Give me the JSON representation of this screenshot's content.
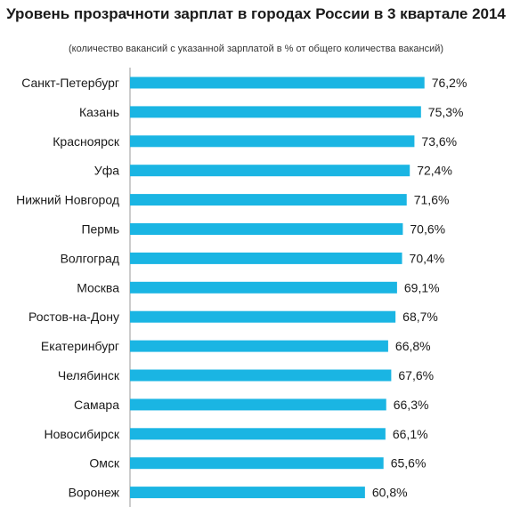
{
  "chart_data": {
    "type": "bar",
    "orientation": "horizontal",
    "title": "Уровень прозрачноти зарплат в городах России в 3 квартале 2014",
    "subtitle": "(количество вакансий с указанной зарплатой в % от общего количества вакансий)",
    "categories": [
      "Санкт-Петербург",
      "Казань",
      "Красноярск",
      "Уфа",
      "Нижний Новгород",
      "Пермь",
      "Волгоград",
      "Москва",
      "Ростов-на-Дону",
      "Екатеринбург",
      "Челябинск",
      "Самара",
      "Новосибирск",
      "Омск",
      "Воронеж"
    ],
    "values": [
      76.2,
      75.3,
      73.6,
      72.4,
      71.6,
      70.6,
      70.4,
      69.1,
      68.7,
      66.8,
      67.6,
      66.3,
      66.1,
      65.6,
      60.8
    ],
    "value_labels": [
      "76,2%",
      "75,3%",
      "73,6%",
      "72,4%",
      "71,6%",
      "70,6%",
      "70,4%",
      "69,1%",
      "68,7%",
      "66,8%",
      "67,6%",
      "66,3%",
      "66,1%",
      "65,6%",
      "60,8%"
    ],
    "bar_color": "#1ab5e3",
    "xlim": [
      0,
      100
    ],
    "grid": false
  }
}
